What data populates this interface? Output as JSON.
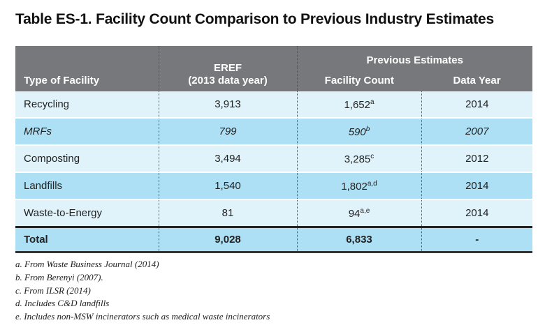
{
  "title": "Table ES-1. Facility Count Comparison to Previous Industry Estimates",
  "header": {
    "type": "Type of Facility",
    "eref_1": "EREF",
    "eref_2": "(2013 data year)",
    "prev": "Previous Estimates",
    "count": "Facility Count",
    "year": "Data Year"
  },
  "rows": [
    {
      "type": "Recycling",
      "eref": "3,913",
      "count": "1,652",
      "sup": "a",
      "year": "2014",
      "italic": false
    },
    {
      "type": "MRFs",
      "eref": "799",
      "count": "590",
      "sup": "b",
      "year": "2007",
      "italic": true
    },
    {
      "type": "Composting",
      "eref": "3,494",
      "count": "3,285",
      "sup": "c",
      "year": "2012",
      "italic": false
    },
    {
      "type": "Landfills",
      "eref": "1,540",
      "count": "1,802",
      "sup": "a,d",
      "year": "2014",
      "italic": false
    },
    {
      "type": "Waste-to-Energy",
      "eref": "81",
      "count": "94",
      "sup": "a,e",
      "year": "2014",
      "italic": false
    }
  ],
  "total": {
    "type": "Total",
    "eref": "9,028",
    "count": "6,833",
    "year": "-"
  },
  "footnotes": [
    "a. From Waste Business Journal (2014)",
    "b. From Berenyi (2007).",
    "c. From ILSR (2014)",
    "d. Includes C&D landfills",
    "e. Includes non-MSW incinerators such as medical waste incinerators"
  ],
  "colors": {
    "header": "#77787b",
    "row_light": "#e0f3fb",
    "row_medium": "#aee0f5"
  }
}
